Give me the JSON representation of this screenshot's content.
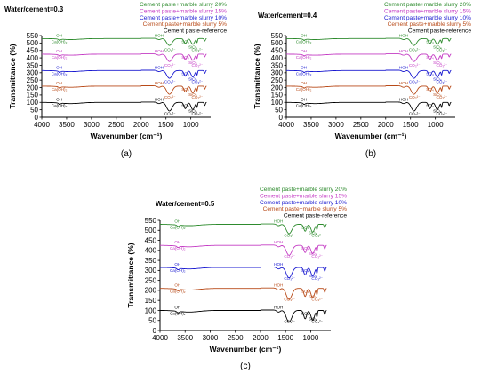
{
  "chart_data": [
    {
      "panel_label": "(a)",
      "condition": "Water/cement=0.3",
      "type": "line",
      "xlabel": "Wavenumber (cm⁻¹)",
      "ylabel": "Transmittance (%)",
      "xlim": [
        4000,
        600
      ],
      "ylim": [
        0,
        550
      ],
      "x_ticks": [
        4000,
        3500,
        3000,
        2500,
        2000,
        1500,
        1000
      ],
      "y_ticks": [
        0,
        50,
        100,
        150,
        200,
        250,
        300,
        350,
        400,
        450,
        500,
        550
      ],
      "legend_position": "top-right",
      "series": [
        {
          "name": "Cement paste+marble slurry 20%",
          "color": "#2e8b2e",
          "offset": 530
        },
        {
          "name": "Cement paste+marble slurry 15%",
          "color": "#c43cc4",
          "offset": 425
        },
        {
          "name": "Cement paste+marble slurry 10%",
          "color": "#1a1ad0",
          "offset": 315
        },
        {
          "name": "Cement paste+marble slurry 5%",
          "color": "#b84a18",
          "offset": 210
        },
        {
          "name": "Cement paste-reference",
          "color": "#000000",
          "offset": 100
        }
      ]
    },
    {
      "panel_label": "(b)",
      "condition": "Water/cement=0.4",
      "type": "line",
      "xlabel": "Wavenumber (cm⁻¹)",
      "ylabel": "Transmittance (%)",
      "xlim": [
        4000,
        600
      ],
      "ylim": [
        0,
        550
      ],
      "x_ticks": [
        4000,
        3500,
        3000,
        2500,
        2000,
        1500,
        1000
      ],
      "y_ticks": [
        0,
        50,
        100,
        150,
        200,
        250,
        300,
        350,
        400,
        450,
        500,
        550
      ],
      "legend_position": "top-right",
      "series": [
        {
          "name": "Cement paste+marble slurry 20%",
          "color": "#2e8b2e",
          "offset": 530
        },
        {
          "name": "Cement paste+marble slurry 15%",
          "color": "#c43cc4",
          "offset": 425
        },
        {
          "name": "Cement paste+marble slurry 10%",
          "color": "#1a1ad0",
          "offset": 315
        },
        {
          "name": "Cement paste+marble slurry 5%",
          "color": "#b84a18",
          "offset": 210
        },
        {
          "name": "Cement paste-reference",
          "color": "#000000",
          "offset": 100
        }
      ]
    },
    {
      "panel_label": "(c)",
      "condition": "Water/cement=0.5",
      "type": "line",
      "xlabel": "Wavenumber (cm⁻¹)",
      "ylabel": "Transmittance (%)",
      "xlim": [
        4000,
        600
      ],
      "ylim": [
        0,
        550
      ],
      "x_ticks": [
        4000,
        3500,
        3000,
        2500,
        2000,
        1500,
        1000
      ],
      "y_ticks": [
        0,
        50,
        100,
        150,
        200,
        250,
        300,
        350,
        400,
        450,
        500,
        550
      ],
      "legend_position": "top-right",
      "series": [
        {
          "name": "Cement paste+marble slurry 20%",
          "color": "#2e8b2e",
          "offset": 530
        },
        {
          "name": "Cement paste+marble slurry 15%",
          "color": "#c43cc4",
          "offset": 425
        },
        {
          "name": "Cement paste+marble slurry 10%",
          "color": "#1a1ad0",
          "offset": 315
        },
        {
          "name": "Cement paste+marble slurry 5%",
          "color": "#b84a18",
          "offset": 210
        },
        {
          "name": "Cement paste-reference",
          "color": "#000000",
          "offset": 100
        }
      ]
    }
  ],
  "band_annotations": [
    {
      "text": "OH",
      "wavenumber": 3650
    },
    {
      "text": "Ca(OH)₂",
      "wavenumber": 3650
    },
    {
      "text": "HOH",
      "wavenumber": 1640
    },
    {
      "text": "CO₃²⁻",
      "wavenumber": 1420
    },
    {
      "text": "SO₄",
      "wavenumber": 1110
    },
    {
      "text": "SiO₄",
      "wavenumber": 960
    },
    {
      "text": "CO₃²⁻",
      "wavenumber": 870
    }
  ]
}
